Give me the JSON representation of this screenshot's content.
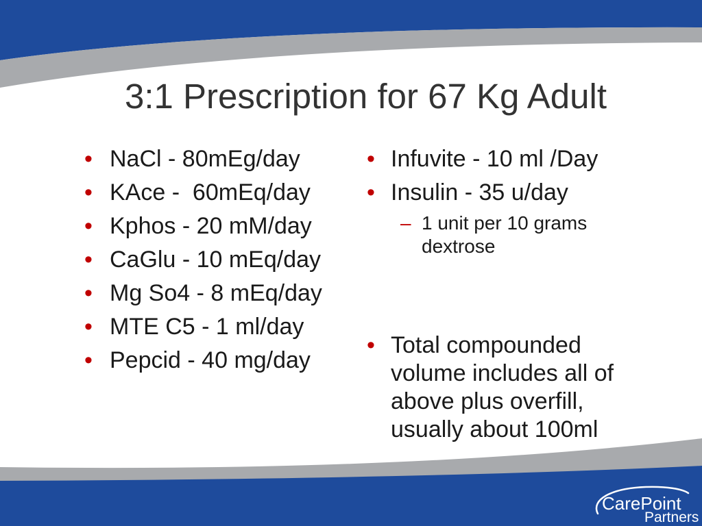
{
  "slide": {
    "title": "3:1 Prescription for 67 Kg Adult",
    "bullet_char": "•",
    "sub_bullet_char": "–",
    "left_bullets": [
      "NaCl - 80mEg/day",
      "KAce -  60mEq/day",
      "Kphos - 20 mM/day",
      "CaGlu - 10 mEq/day",
      "Mg So4 - 8 mEq/day",
      "MTE C5 - 1 ml/day",
      "Pepcid - 40 mg/day"
    ],
    "right_bullets": [
      {
        "text": "Infuvite - 10 ml /Day"
      },
      {
        "text": "Insulin - 35 u/day",
        "sub_bullets": [
          "1 unit per 10 grams dextrose"
        ]
      },
      {
        "text": "Total compounded volume includes all of above plus overfill, usually about 100ml"
      }
    ]
  },
  "logo": {
    "line1": "CarePoint",
    "line2": "Partners"
  },
  "colors": {
    "band_blue": "#1e4b9c",
    "band_grey": "#a8aaad",
    "bullet_red": "#c00000",
    "title_text": "#333333",
    "body_text": "#1a1a1a",
    "logo_white": "#ffffff"
  }
}
